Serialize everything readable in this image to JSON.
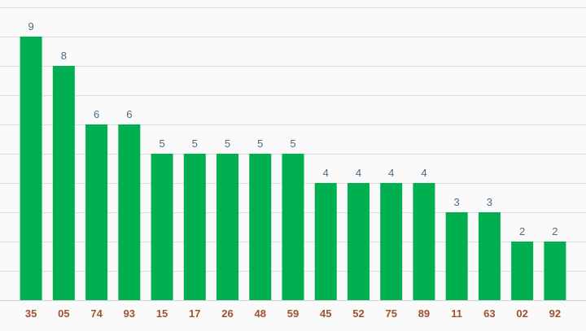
{
  "chart_data": {
    "type": "bar",
    "categories": [
      "35",
      "05",
      "74",
      "93",
      "15",
      "17",
      "26",
      "48",
      "59",
      "45",
      "52",
      "75",
      "89",
      "11",
      "63",
      "02",
      "92"
    ],
    "values": [
      9,
      8,
      6,
      6,
      5,
      5,
      5,
      5,
      5,
      4,
      4,
      4,
      4,
      3,
      3,
      2,
      2
    ],
    "ylim": [
      0,
      10
    ],
    "grid": true,
    "legend": "none",
    "colors": {
      "bar": "#00b050",
      "value_label": "#4a6b86",
      "tick_label": "#a0522d"
    }
  }
}
